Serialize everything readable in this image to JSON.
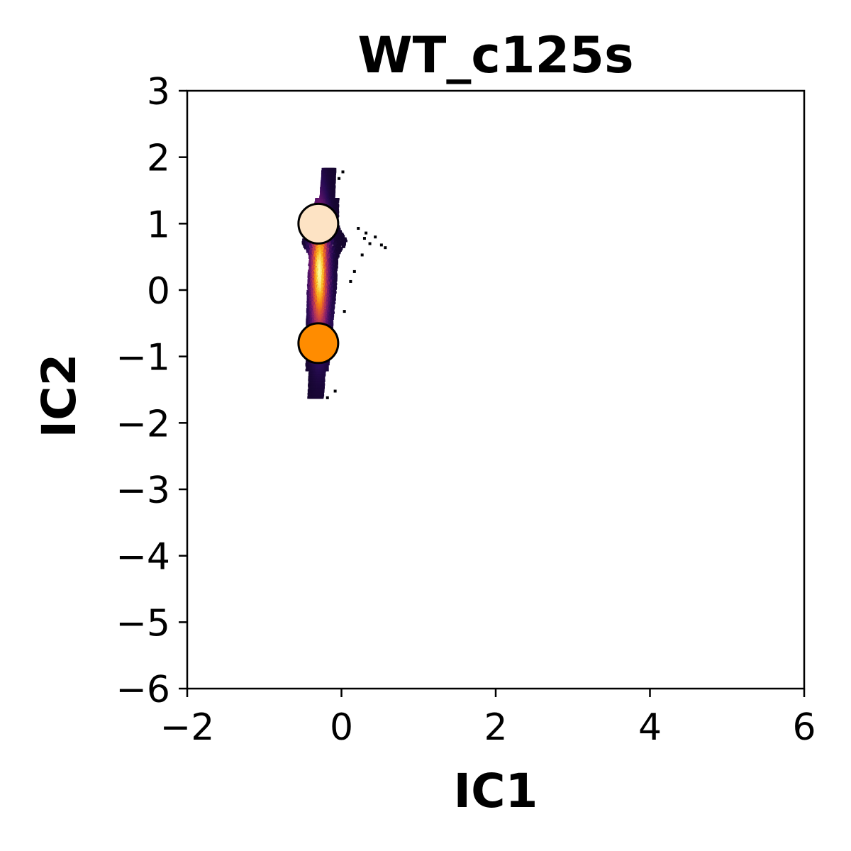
{
  "chart_data": {
    "type": "heatmap",
    "title": "WT_c125s",
    "xlabel": "IC1",
    "ylabel": "IC2",
    "xlim": [
      -2,
      6
    ],
    "ylim": [
      -6,
      3
    ],
    "xticks": [
      -2,
      0,
      2,
      4,
      6
    ],
    "xtick_labels": [
      "−2",
      "0",
      "2",
      "4",
      "6"
    ],
    "yticks": [
      3,
      2,
      1,
      0,
      -1,
      -2,
      -3,
      -4,
      -5,
      -6
    ],
    "ytick_labels": [
      "3",
      "2",
      "1",
      "0",
      "−1",
      "−2",
      "−3",
      "−4",
      "−5",
      "−6"
    ],
    "grid": false,
    "colormap": "inferno",
    "density": {
      "extent_x": [
        -0.55,
        0.55
      ],
      "extent_y": [
        -1.6,
        1.85
      ],
      "peak": [
        -0.3,
        0.3
      ]
    },
    "markers": [
      {
        "x": -0.3,
        "y": 1.0,
        "color": "#fde3c4"
      },
      {
        "x": -0.3,
        "y": -0.8,
        "color": "#ff8c00"
      }
    ]
  }
}
